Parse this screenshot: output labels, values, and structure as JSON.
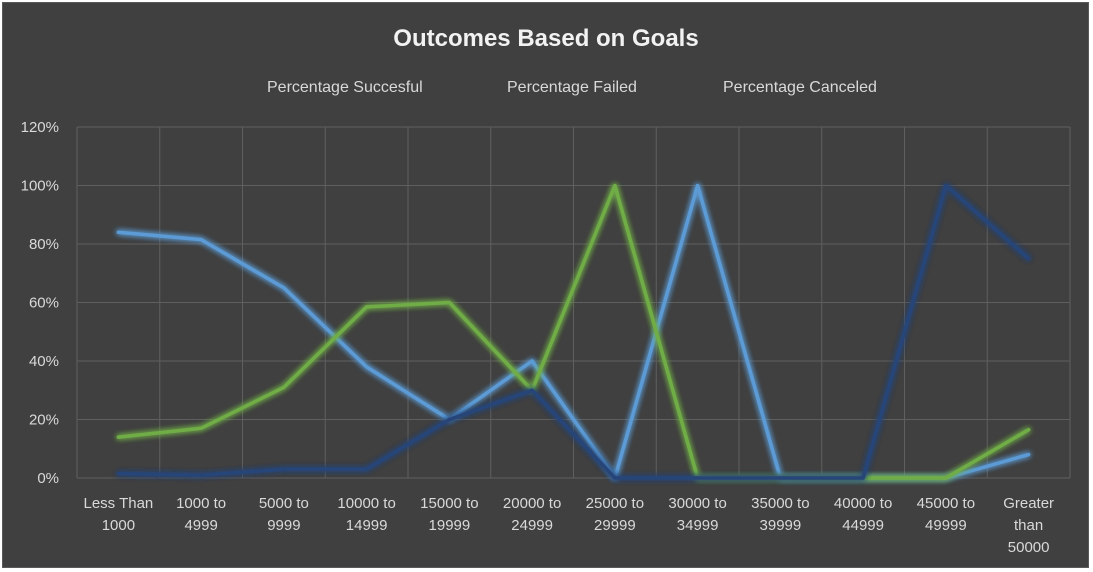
{
  "chart_data": {
    "type": "line",
    "title": "Outcomes Based on Goals",
    "categories": [
      [
        "Less Than",
        "1000"
      ],
      [
        "1000 to",
        "4999"
      ],
      [
        "5000 to",
        "9999"
      ],
      [
        "10000 to",
        "14999"
      ],
      [
        "15000 to",
        "19999"
      ],
      [
        "20000 to",
        "24999"
      ],
      [
        "25000 to",
        "29999"
      ],
      [
        "30000 to",
        "34999"
      ],
      [
        "35000 to",
        "39999"
      ],
      [
        "40000 to",
        "44999"
      ],
      [
        "45000 to",
        "49999"
      ],
      [
        "Greater",
        "than",
        "50000"
      ]
    ],
    "series": [
      {
        "name": "Percentage Succesful",
        "color": "#5b9bd5",
        "values": [
          84,
          81.5,
          65,
          38,
          20,
          40,
          0,
          100,
          0,
          0,
          0,
          8
        ]
      },
      {
        "name": "Percentage Failed",
        "color": "#70ad47",
        "values": [
          14,
          17,
          31,
          58.5,
          60,
          30,
          100,
          0,
          0,
          0,
          0,
          16.5
        ]
      },
      {
        "name": "Percentage Canceled",
        "color": "#264478",
        "values": [
          1.5,
          1,
          3,
          3,
          20,
          30,
          0,
          0,
          0,
          0,
          100,
          75
        ]
      }
    ],
    "ylim": [
      0,
      120
    ],
    "yticks": [
      "0%",
      "20%",
      "40%",
      "60%",
      "80%",
      "100%",
      "120%"
    ],
    "ytick_values": [
      0,
      20,
      40,
      60,
      80,
      100,
      120
    ],
    "xlabel": "",
    "ylabel": "",
    "grid": true,
    "legend_position": "top",
    "background": "#404040"
  }
}
